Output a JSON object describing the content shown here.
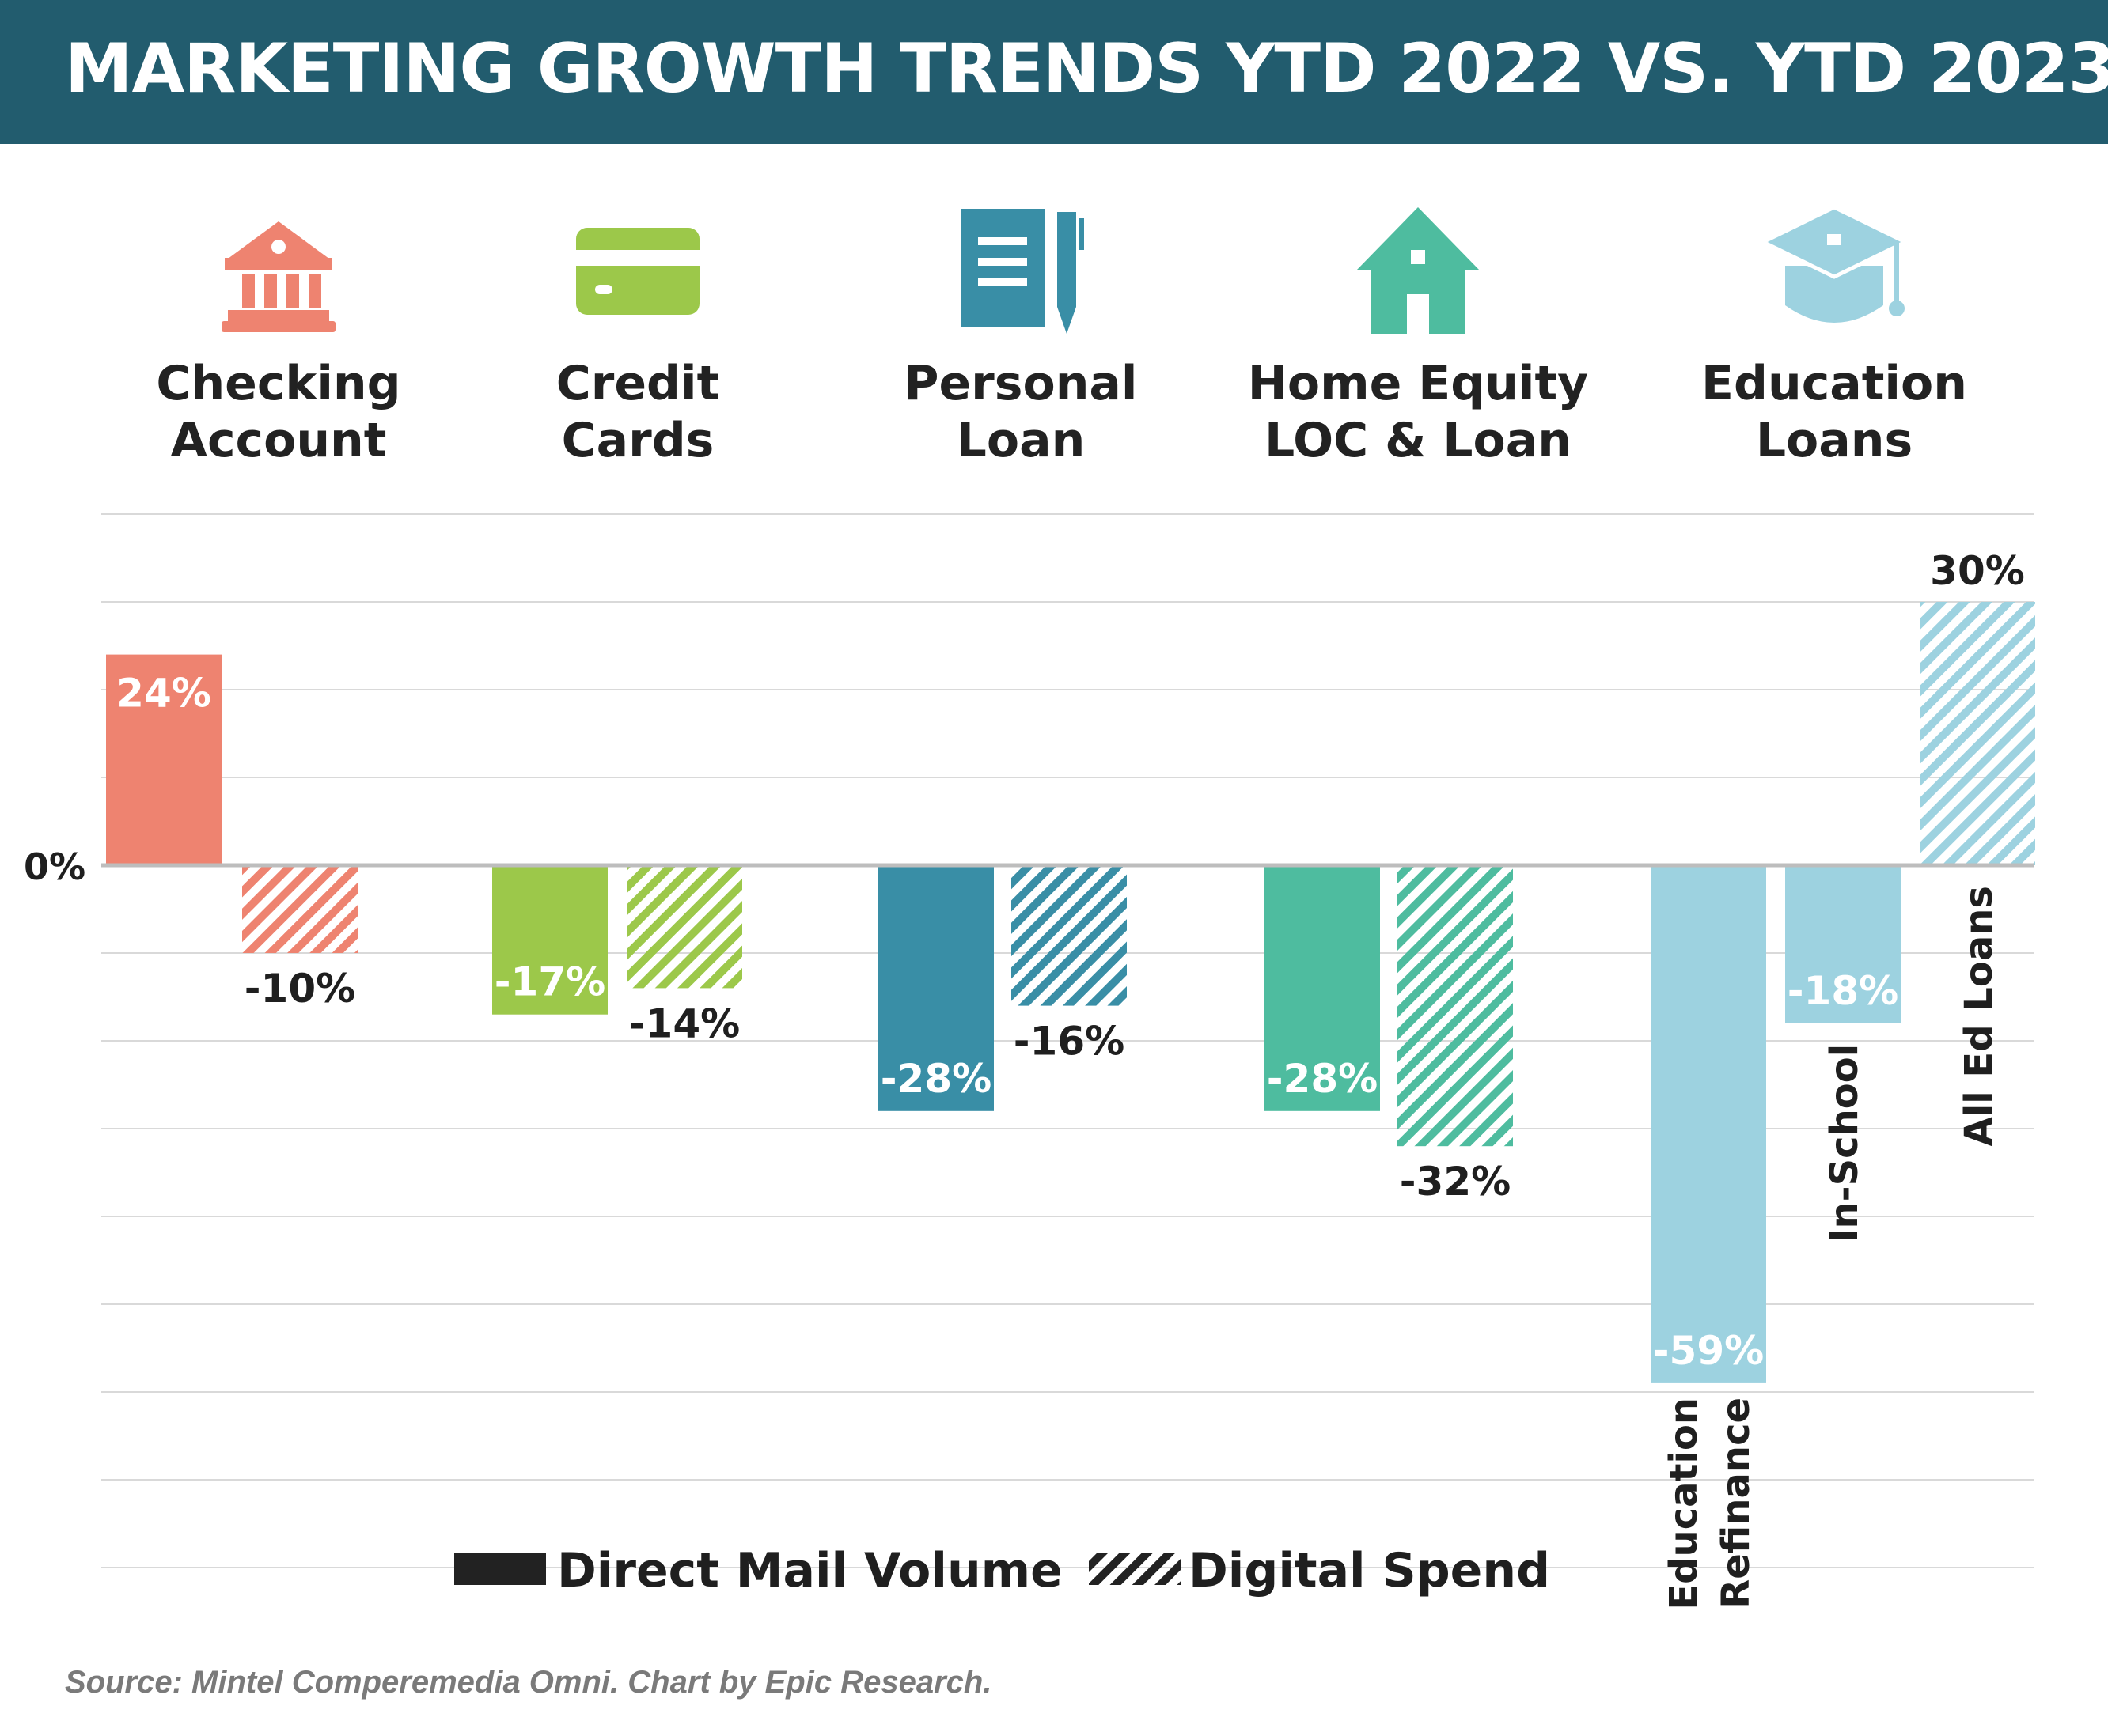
{
  "title": "MARKETING GROWTH TRENDS YTD 2022 VS. YTD 2023",
  "source": "Source: Mintel Comperemedia Omni. Chart by Epic Research.",
  "chart_data": {
    "type": "bar",
    "zero_label": "0%",
    "legend": [
      {
        "label": "Direct Mail Volume",
        "pattern": "solid"
      },
      {
        "label": "Digital Spend",
        "pattern": "hatched"
      }
    ],
    "grid": true,
    "ylim": [
      -72,
      40
    ],
    "categories": [
      {
        "label_lines": [
          "Checking",
          "Account"
        ],
        "icon": "bank-icon",
        "color": "#ee8370",
        "bars": [
          {
            "series": "Direct Mail Volume",
            "value": 24,
            "label": "24%"
          },
          {
            "series": "Digital Spend",
            "value": -10,
            "label": "-10%"
          }
        ]
      },
      {
        "label_lines": [
          "Credit",
          "Cards"
        ],
        "icon": "credit-card-icon",
        "color": "#9cc84a",
        "bars": [
          {
            "series": "Direct Mail Volume",
            "value": -17,
            "label": "-17%"
          },
          {
            "series": "Digital Spend",
            "value": -14,
            "label": "-14%"
          }
        ]
      },
      {
        "label_lines": [
          "Personal",
          "Loan"
        ],
        "icon": "document-pen-icon",
        "color": "#398ea6",
        "bars": [
          {
            "series": "Direct Mail Volume",
            "value": -28,
            "label": "-28%"
          },
          {
            "series": "Digital Spend",
            "value": -16,
            "label": "-16%"
          }
        ]
      },
      {
        "label_lines": [
          "Home Equity",
          "LOC & Loan"
        ],
        "icon": "house-icon",
        "color": "#4ebc9f",
        "bars": [
          {
            "series": "Direct Mail Volume",
            "value": -28,
            "label": "-28%"
          },
          {
            "series": "Digital Spend",
            "value": -32,
            "label": "-32%"
          }
        ]
      },
      {
        "label_lines": [
          "Education",
          "Loans"
        ],
        "icon": "graduation-cap-icon",
        "color": "#9dd2e0",
        "bars": [
          {
            "series": "Direct Mail Volume",
            "value": -59,
            "label": "-59%",
            "sublabel_lines": [
              "Education",
              "Refinance"
            ]
          },
          {
            "series": "Direct Mail Volume",
            "value": -18,
            "label": "-18%",
            "sublabel_lines": [
              "In-School"
            ]
          },
          {
            "series": "Digital Spend",
            "value": 30,
            "label": "30%",
            "sublabel_lines": [
              "All Ed Loans"
            ]
          }
        ]
      }
    ]
  }
}
